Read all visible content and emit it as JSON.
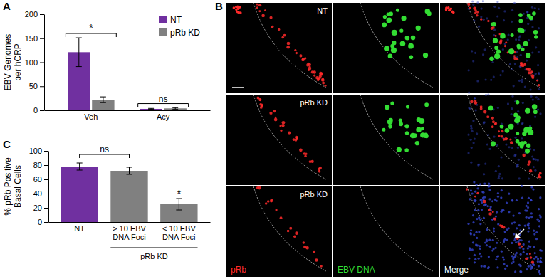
{
  "chart_data": [
    {
      "type": "bar",
      "title": "A",
      "y_label": "EBV Genomes per hCRP",
      "categories": [
        "Veh",
        "Acy"
      ],
      "series": [
        {
          "name": "NT",
          "color": "#7030a0",
          "values": [
            121,
            3
          ],
          "errors": [
            30,
            1
          ]
        },
        {
          "name": "pRb KD",
          "color": "#808080",
          "values": [
            22,
            4
          ],
          "errors": [
            6,
            1.5
          ]
        }
      ],
      "ylim": [
        0,
        200
      ],
      "yticks": [
        0,
        50,
        100,
        150,
        200
      ],
      "legend": "top-right",
      "annotations": [
        {
          "text": "*",
          "from": 0,
          "to": 0,
          "y": 160,
          "bracket": true
        },
        {
          "text": "ns",
          "from": 1,
          "to": 1,
          "y": 14,
          "bracket": true
        }
      ]
    },
    {
      "type": "bar",
      "title": "C",
      "y_label": "% pRb Positive Basal Cells",
      "categories": [
        "NT",
        "> 10 EBV DNA Foci",
        "< 10 EBV DNA Foci"
      ],
      "values": [
        78,
        72,
        25
      ],
      "errors": [
        5,
        5,
        8
      ],
      "colors": [
        "#7030a0",
        "#808080",
        "#808080"
      ],
      "ylim": [
        0,
        100
      ],
      "yticks": [
        0,
        20,
        40,
        60,
        80,
        100
      ],
      "category_groups": [
        {
          "label": "pRb KD",
          "from": 1,
          "to": 2
        }
      ],
      "annotations": [
        {
          "text": "ns",
          "from": 0,
          "to": 1,
          "y": 95,
          "bracket": true
        },
        {
          "text": "*",
          "from": 2,
          "to": 2,
          "y": 35,
          "bracket": false
        }
      ]
    }
  ],
  "image_panel": {
    "title": "B",
    "rows": [
      "NT",
      "pRb KD",
      "pRb KD"
    ],
    "channels": [
      {
        "label": "pRb",
        "color": "#ff2a2a"
      },
      {
        "label": "EBV DNA",
        "color": "#33dd33"
      },
      {
        "label": "Merge",
        "color": "#ffffff"
      }
    ]
  }
}
